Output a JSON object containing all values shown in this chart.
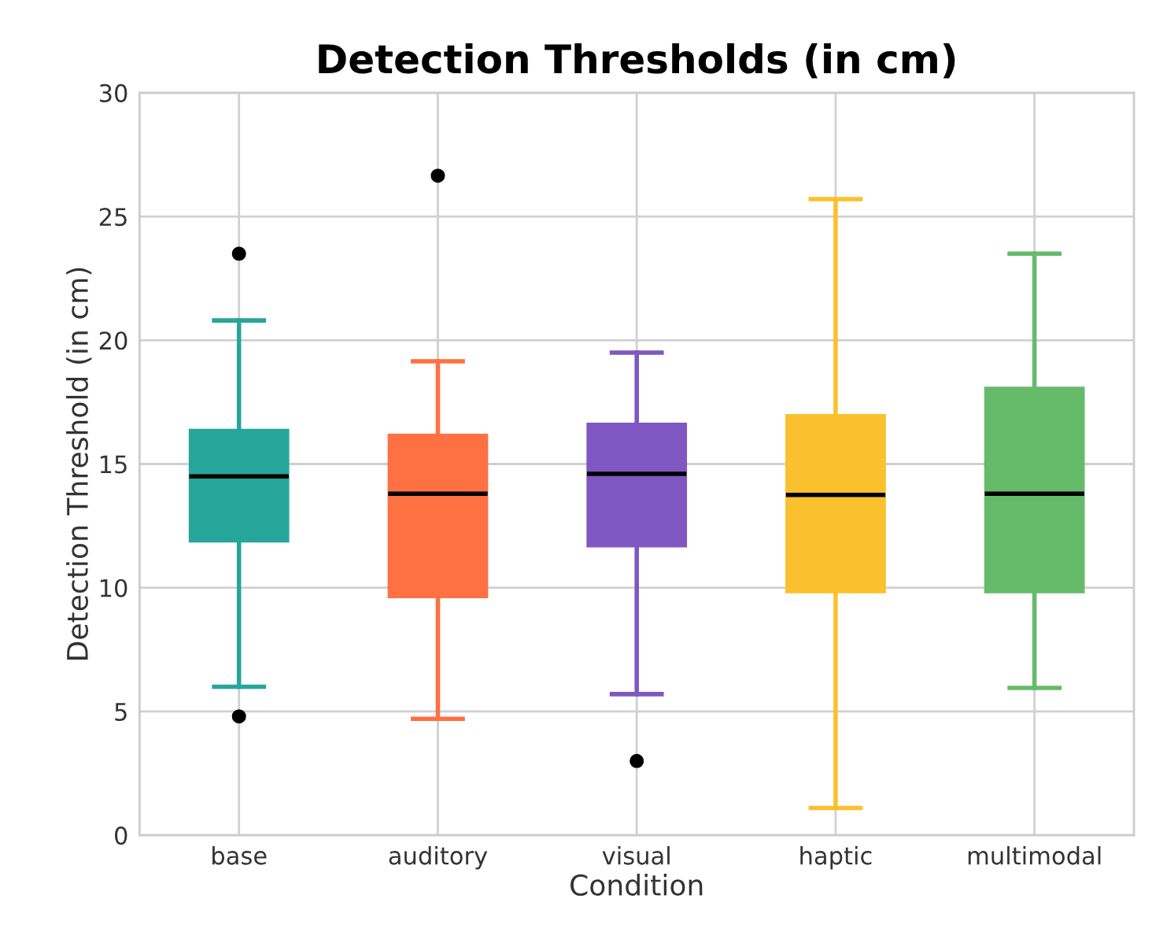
{
  "chart_data": {
    "type": "box",
    "title": "Detection Thresholds (in cm)",
    "xlabel": "Condition",
    "ylabel": "Detection Threshold (in cm)",
    "categories": [
      "base",
      "auditory",
      "visual",
      "haptic",
      "multimodal"
    ],
    "colors": [
      "#26a69a",
      "#ff7043",
      "#7e57c2",
      "#fbc02d",
      "#66bb6a"
    ],
    "boxes": [
      {
        "low": 6.0,
        "q1": 11.85,
        "median": 14.5,
        "q3": 16.4,
        "high": 20.8,
        "outliers": [
          23.5,
          4.8
        ]
      },
      {
        "low": 4.7,
        "q1": 9.6,
        "median": 13.8,
        "q3": 16.2,
        "high": 19.15,
        "outliers": [
          26.65
        ]
      },
      {
        "low": 5.7,
        "q1": 11.65,
        "median": 14.6,
        "q3": 16.65,
        "high": 19.5,
        "outliers": [
          3.0
        ]
      },
      {
        "low": 1.1,
        "q1": 9.8,
        "median": 13.75,
        "q3": 17.0,
        "high": 25.7
      },
      {
        "low": 5.95,
        "q1": 9.8,
        "median": 13.8,
        "q3": 18.1,
        "high": 23.5
      }
    ],
    "ylim": [
      0,
      30
    ],
    "yticks": [
      0,
      5,
      10,
      15,
      20,
      25,
      30
    ],
    "grid": true
  }
}
